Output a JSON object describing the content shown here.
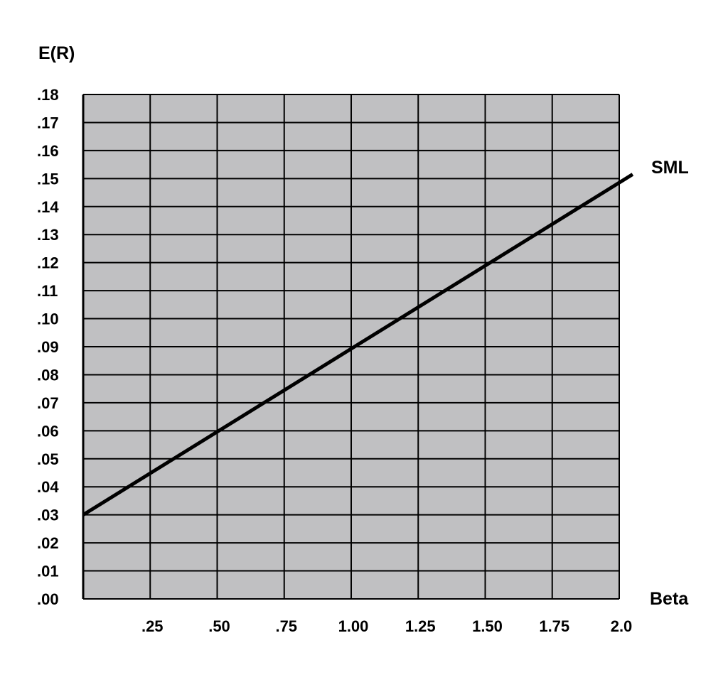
{
  "chart_data": {
    "type": "line",
    "title": "",
    "xlabel": "Beta",
    "ylabel": "E(R)",
    "xlim": [
      0,
      2.0
    ],
    "ylim": [
      0,
      0.18
    ],
    "grid": true,
    "x_ticks": [
      {
        "value": 0.25,
        "label": ".25"
      },
      {
        "value": 0.5,
        "label": ".50"
      },
      {
        "value": 0.75,
        "label": ".75"
      },
      {
        "value": 1.0,
        "label": "1.00"
      },
      {
        "value": 1.25,
        "label": "1.25"
      },
      {
        "value": 1.5,
        "label": "1.50"
      },
      {
        "value": 1.75,
        "label": "1.75"
      },
      {
        "value": 2.0,
        "label": "2.0"
      }
    ],
    "y_ticks": [
      {
        "value": 0.0,
        "label": ".00"
      },
      {
        "value": 0.01,
        "label": ".01"
      },
      {
        "value": 0.02,
        "label": ".02"
      },
      {
        "value": 0.03,
        "label": ".03"
      },
      {
        "value": 0.04,
        "label": ".04"
      },
      {
        "value": 0.05,
        "label": ".05"
      },
      {
        "value": 0.06,
        "label": ".06"
      },
      {
        "value": 0.07,
        "label": ".07"
      },
      {
        "value": 0.08,
        "label": ".08"
      },
      {
        "value": 0.09,
        "label": ".09"
      },
      {
        "value": 0.1,
        "label": ".10"
      },
      {
        "value": 0.11,
        "label": ".11"
      },
      {
        "value": 0.12,
        "label": ".12"
      },
      {
        "value": 0.13,
        "label": ".13"
      },
      {
        "value": 0.14,
        "label": ".14"
      },
      {
        "value": 0.15,
        "label": ".15"
      },
      {
        "value": 0.16,
        "label": ".16"
      },
      {
        "value": 0.17,
        "label": ".17"
      },
      {
        "value": 0.18,
        "label": ".18"
      }
    ],
    "series": [
      {
        "name": "SML",
        "x": [
          0,
          2.05
        ],
        "y": [
          0.03,
          0.1515
        ]
      }
    ],
    "colors": {
      "plot_background": "#c0c0c2",
      "grid": "#000000",
      "line": "#000000"
    }
  }
}
